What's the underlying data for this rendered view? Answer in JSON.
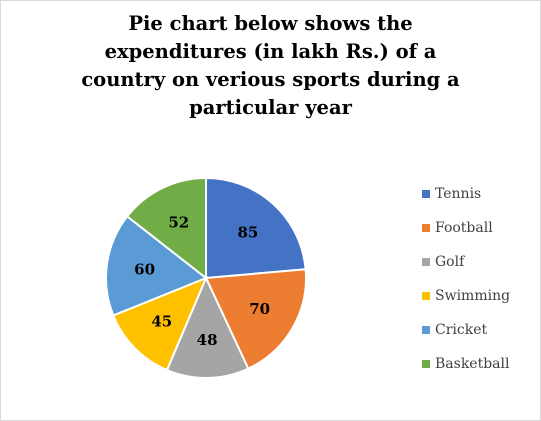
{
  "chart_data": {
    "type": "pie",
    "title": "Pie chart below shows the\nexpenditures (in lakh Rs.) of a\ncountry on verious sports during a\nparticular year",
    "categories": [
      "Tennis",
      "Football",
      "Golf",
      "Swimming",
      "Cricket",
      "Basketball"
    ],
    "values": [
      85,
      70,
      48,
      45,
      60,
      52
    ],
    "colors": [
      "#4472c4",
      "#ed7d31",
      "#a5a5a5",
      "#ffc000",
      "#5b9bd5",
      "#70ad47"
    ],
    "legend_position": "right",
    "data_labels": true
  }
}
